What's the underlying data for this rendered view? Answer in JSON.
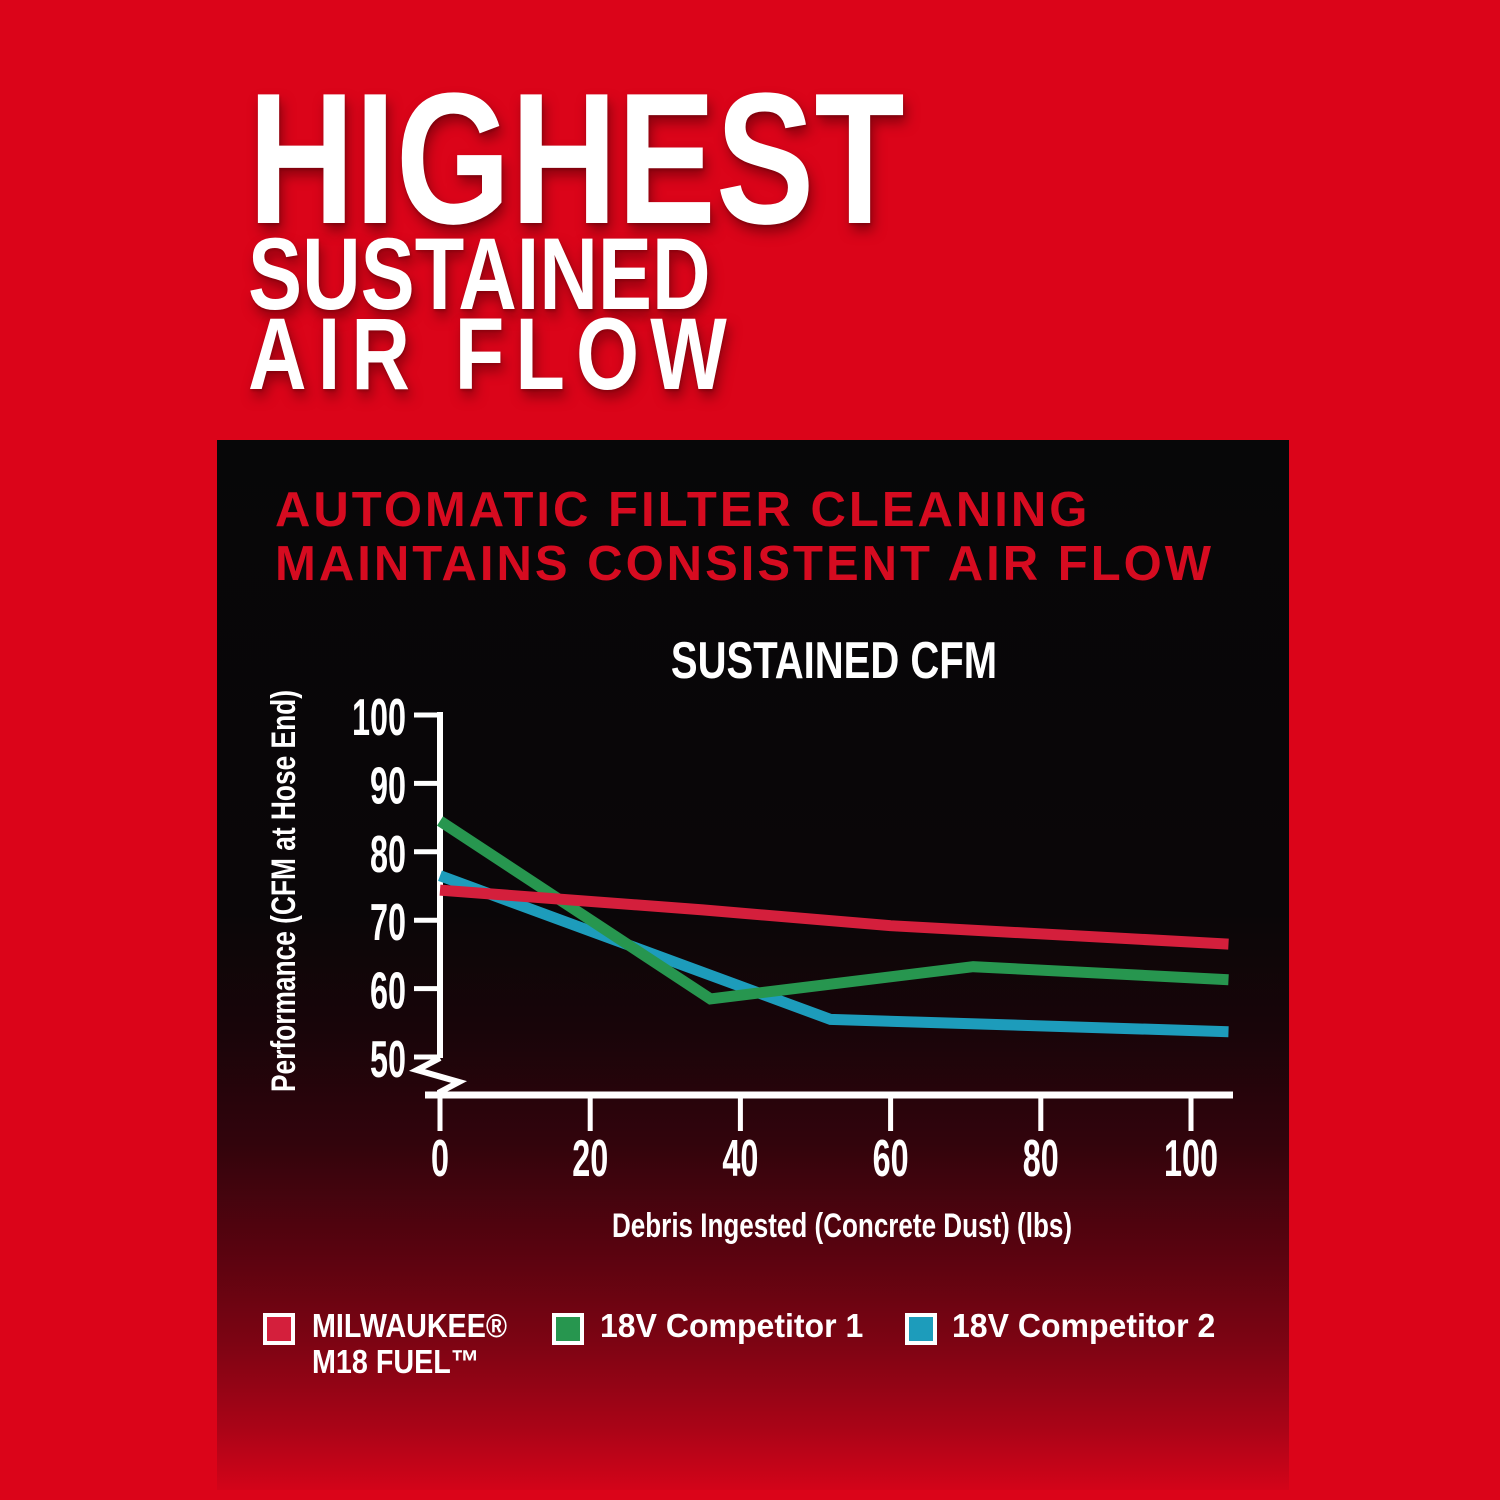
{
  "page": {
    "background_color": "#db0419"
  },
  "heading": {
    "line1": "HIGHEST",
    "line2": "SUSTAINED",
    "line3": "AIR FLOW",
    "text_color": "#ffffff"
  },
  "panel": {
    "subtitle_line1": "AUTOMATIC FILTER CLEANING",
    "subtitle_line2": "MAINTAINS CONSISTENT AIR FLOW",
    "subtitle_color": "#d60b20"
  },
  "chart_data": {
    "type": "line",
    "title": "SUSTAINED CFM",
    "xlabel": "Debris Ingested (Concrete Dust) (lbs)",
    "ylabel": "Performance (CFM at Hose End)",
    "xlim": [
      0,
      107
    ],
    "ylim": [
      50,
      100
    ],
    "x_ticks": [
      0,
      20,
      40,
      60,
      80,
      100
    ],
    "y_ticks": [
      100,
      90,
      80,
      70,
      60,
      50
    ],
    "y_axis_break": true,
    "grid": false,
    "axis_color": "#ffffff",
    "legend_position": "bottom",
    "series": [
      {
        "name": "MILWAUKEE® M18 FUEL™",
        "color": "#d41f3c",
        "points": [
          [
            0,
            74.4
          ],
          [
            35,
            71.5
          ],
          [
            60,
            69.2
          ],
          [
            105,
            66.5
          ]
        ]
      },
      {
        "name": "18V Competitor 1",
        "color": "#27964f",
        "points": [
          [
            0,
            84.5
          ],
          [
            36,
            58.5
          ],
          [
            71,
            63.2
          ],
          [
            105,
            61.3
          ]
        ]
      },
      {
        "name": "18V Competitor 2",
        "color": "#1d9cbb",
        "points": [
          [
            0,
            76.5
          ],
          [
            52,
            55.5
          ],
          [
            105,
            53.7
          ]
        ]
      }
    ]
  },
  "legend": {
    "items": [
      {
        "label_line1": "MILWAUKEE®",
        "label_line2": "M18 FUEL™",
        "color": "#d41f3c"
      },
      {
        "label_line1": "18V Competitor 1",
        "label_line2": "",
        "color": "#27964f"
      },
      {
        "label_line1": "18V Competitor 2",
        "label_line2": "",
        "color": "#1d9cbb"
      }
    ]
  }
}
